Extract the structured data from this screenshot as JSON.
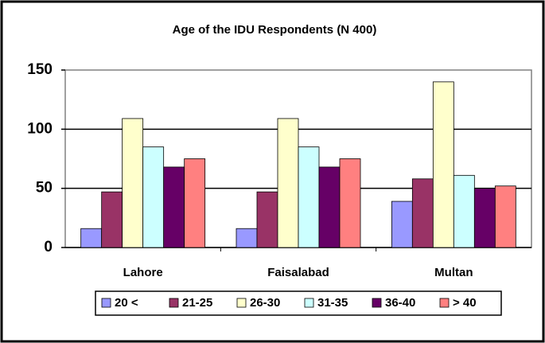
{
  "chart_data": {
    "type": "bar",
    "title": "Age of the IDU Respondents (N 400)",
    "categories": [
      "Lahore",
      "Faisalabad",
      "Multan"
    ],
    "series": [
      {
        "name": "20 <",
        "color": "#9999ff",
        "values": [
          16,
          16,
          39
        ]
      },
      {
        "name": "21-25",
        "color": "#993366",
        "values": [
          47,
          47,
          58
        ]
      },
      {
        "name": "26-30",
        "color": "#ffffcc",
        "values": [
          109,
          109,
          140
        ]
      },
      {
        "name": "31-35",
        "color": "#ccffff",
        "values": [
          85,
          85,
          61
        ]
      },
      {
        "name": "36-40",
        "color": "#660066",
        "values": [
          68,
          68,
          50
        ]
      },
      {
        "name": "> 40",
        "color": "#ff8080",
        "values": [
          75,
          75,
          52
        ]
      }
    ],
    "ylim": [
      0,
      150
    ],
    "yticks": [
      0,
      50,
      100,
      150
    ],
    "grid": true,
    "legend": "bottom"
  }
}
